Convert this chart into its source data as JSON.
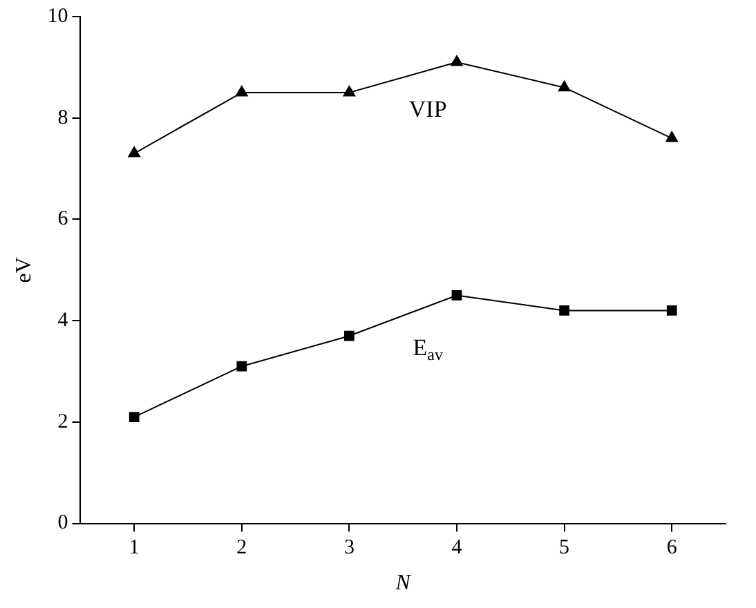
{
  "chart_data": {
    "type": "line",
    "xlabel": "N",
    "ylabel": "eV",
    "x": [
      1,
      2,
      3,
      4,
      5,
      6
    ],
    "series": [
      {
        "name": "VIP",
        "color": "#000000",
        "marker": "triangle",
        "values": [
          7.3,
          8.5,
          8.5,
          9.1,
          8.6,
          7.6
        ]
      },
      {
        "name": "E$_{av}$",
        "color": "#000000",
        "marker": "square",
        "values": [
          2.1,
          3.1,
          3.7,
          4.5,
          4.2,
          4.2
        ]
      }
    ],
    "xlim": [
      0.5,
      6.5
    ],
    "xticks": [
      1,
      2,
      3,
      4,
      5,
      6
    ],
    "ylim": [
      0,
      10
    ],
    "yticks": [
      0,
      2,
      4,
      6,
      8,
      10
    ],
    "grid": false,
    "legend": false,
    "line_style": "solid"
  }
}
